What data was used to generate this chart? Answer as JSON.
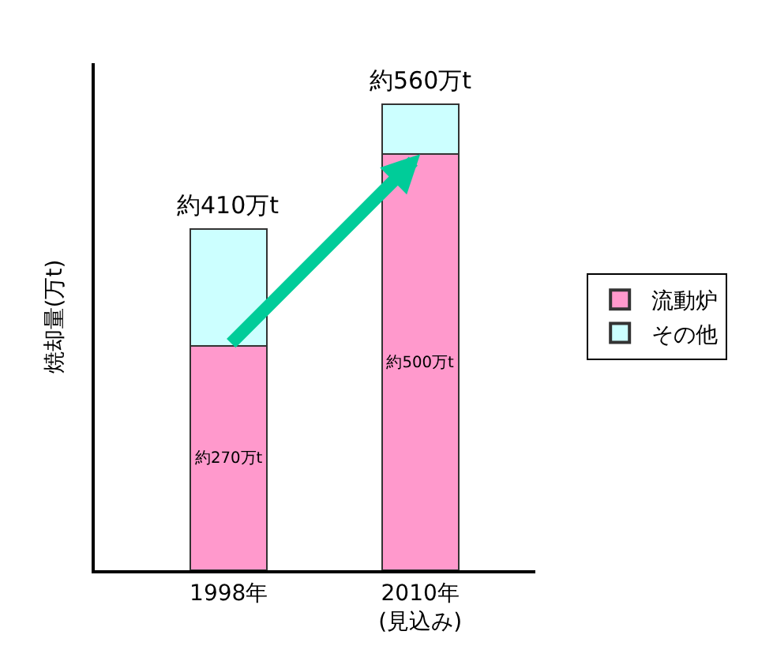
{
  "chart_data": {
    "type": "bar",
    "stacked": true,
    "ylabel": "焼却量(万t)",
    "categories": [
      "1998年",
      "2010年\n(見込み)"
    ],
    "series": [
      {
        "name": "流動炉",
        "color": "#ff99cc",
        "values": [
          270,
          500
        ],
        "value_labels": [
          "約270万t",
          "約500万t"
        ]
      },
      {
        "name": "その他",
        "color": "#ccffff",
        "values": [
          140,
          60
        ]
      }
    ],
    "totals": [
      "約410万t",
      "約560万t"
    ],
    "legend": "right",
    "tick_labels": "x"
  }
}
